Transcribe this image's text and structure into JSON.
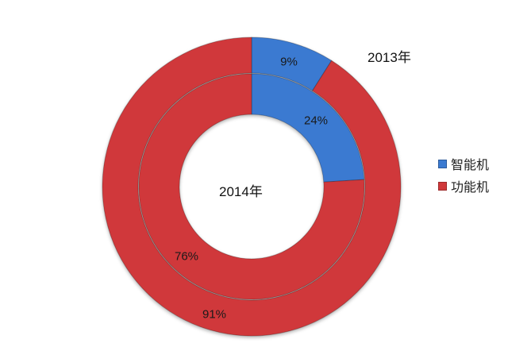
{
  "chart_data": {
    "type": "pie",
    "subtype": "doughnut",
    "title": "",
    "categories": [
      "智能机",
      "功能机"
    ],
    "series": [
      {
        "name": "2014年",
        "ring": "inner",
        "values": [
          24,
          76
        ],
        "labels": [
          "24%",
          "76%"
        ]
      },
      {
        "name": "2013年",
        "ring": "outer",
        "values": [
          9,
          91
        ],
        "labels": [
          "9%",
          "91%"
        ]
      }
    ],
    "legend": {
      "position": "right",
      "entries": [
        "智能机",
        "功能机"
      ]
    },
    "annotations": [
      "2013年",
      "2014年"
    ]
  },
  "colors": {
    "smart": "#3b7ad1",
    "feature": "#d0383a"
  },
  "labels": {
    "year_outer": "2013年",
    "year_inner": "2014年",
    "outer_smart_pct": "9%",
    "outer_feature_pct": "91%",
    "inner_smart_pct": "24%",
    "inner_feature_pct": "76%"
  },
  "legend": {
    "items": [
      {
        "label": "智能机",
        "color": "#3b7ad1"
      },
      {
        "label": "功能机",
        "color": "#d0383a"
      }
    ]
  }
}
